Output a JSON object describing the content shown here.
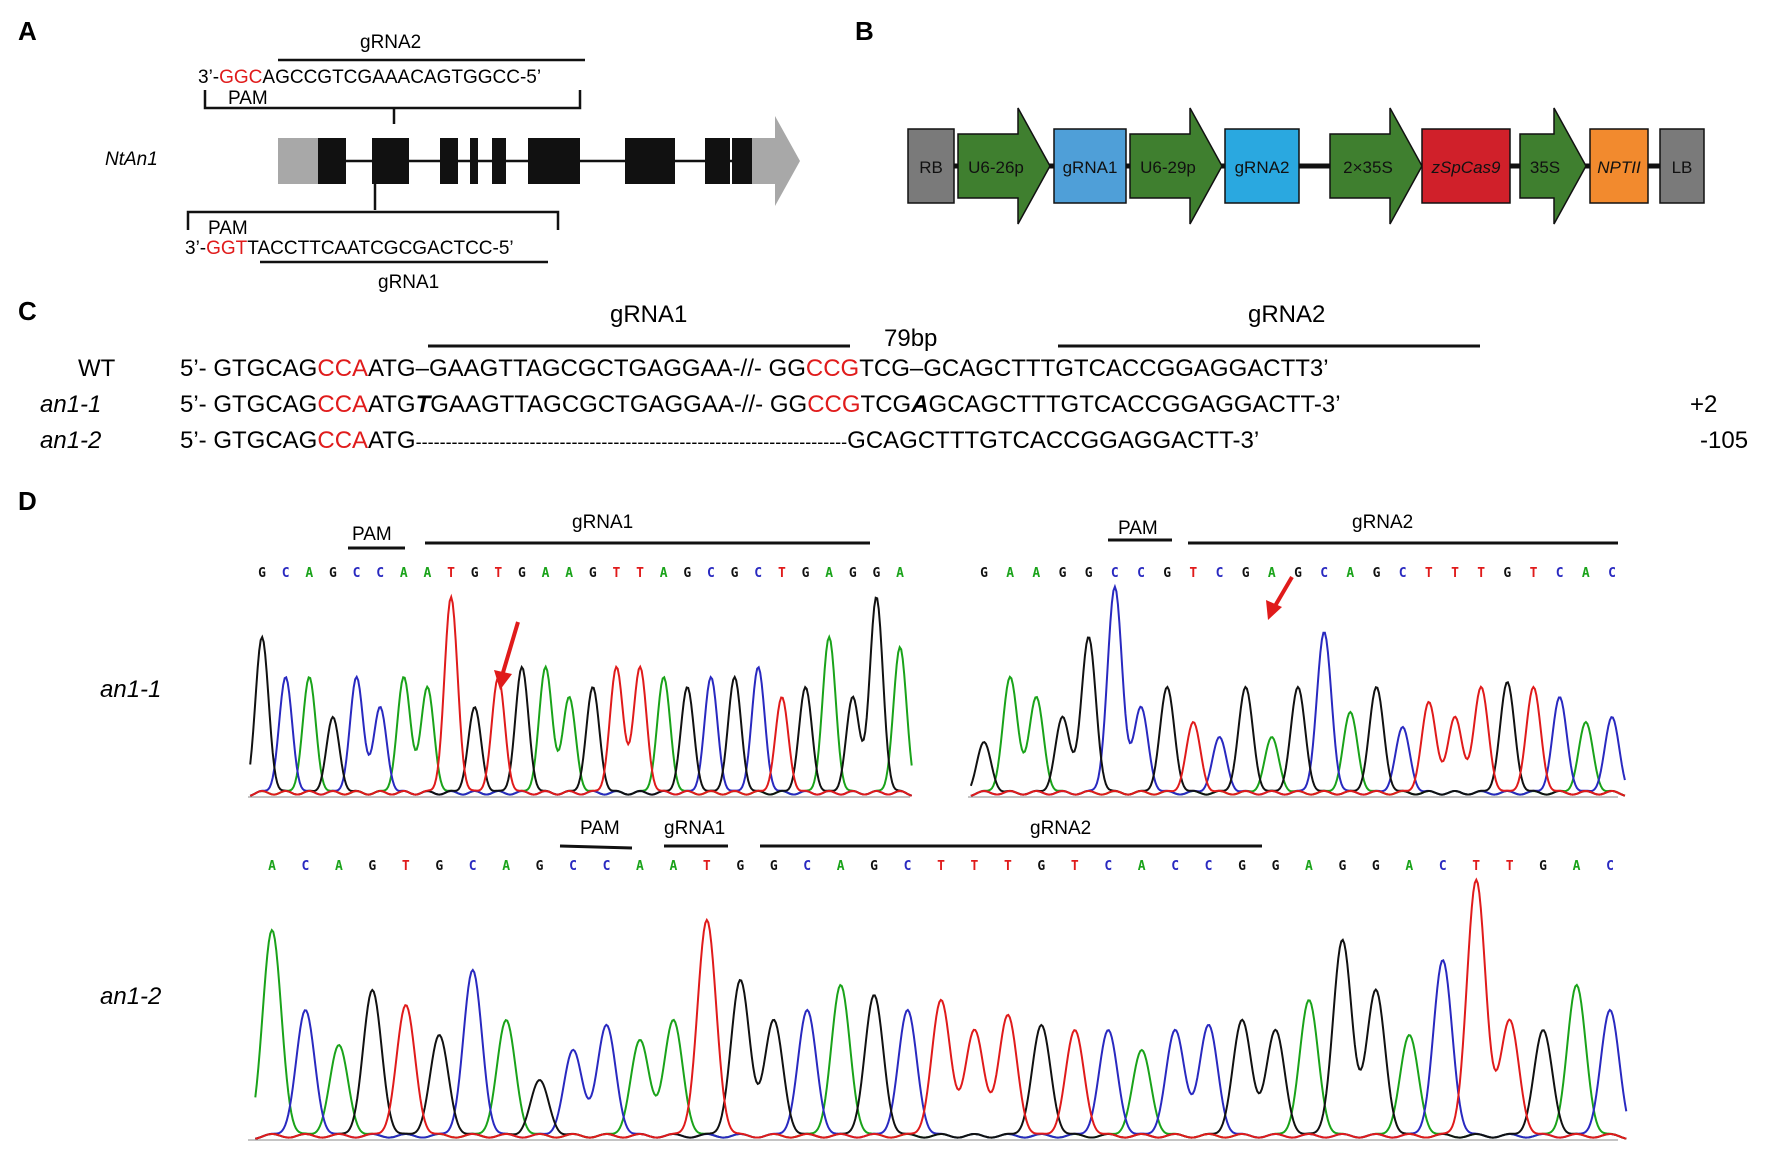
{
  "panels": {
    "a": "A",
    "b": "B",
    "c": "C",
    "d": "D"
  },
  "panelA": {
    "gene": "NtAn1",
    "grna2_label": "gRNA2",
    "grna2_prefix": "3’-",
    "grna2_pam": "GGC",
    "grna2_rest": "AGCCGTCGAAACAGTGGCC-5’",
    "pam_top": "PAM",
    "pam_bottom": "PAM",
    "grna1_prefix": "3’-",
    "grna1_pam": "GGT",
    "grna1_rest": "TACCTTCAATCGCGACTCC-5’",
    "grna1_label": "gRNA1"
  },
  "panelB": {
    "elements": [
      {
        "label": "RB",
        "color": "#7a7a7a",
        "shape": "box"
      },
      {
        "label": "U6-26p",
        "color": "#3f7f2f",
        "shape": "arrow"
      },
      {
        "label": "gRNA1",
        "color": "#4f9fd8",
        "shape": "box"
      },
      {
        "label": "U6-29p",
        "color": "#3f7f2f",
        "shape": "arrow"
      },
      {
        "label": "gRNA2",
        "color": "#2aa8e0",
        "shape": "box"
      },
      {
        "label": "2×35S",
        "color": "#3f7f2f",
        "shape": "arrow"
      },
      {
        "label": "zSpCas9",
        "color": "#d0202a",
        "shape": "box"
      },
      {
        "label": "35S",
        "color": "#3f7f2f",
        "shape": "arrow"
      },
      {
        "label": "NPTII",
        "color": "#f28a2e",
        "shape": "box"
      },
      {
        "label": "LB",
        "color": "#7a7a7a",
        "shape": "box"
      }
    ]
  },
  "panelC": {
    "grna1": "gRNA1",
    "grna2": "gRNA2",
    "gap": "79bp",
    "rows": [
      {
        "name": "WT",
        "prefix": "5’- ",
        "p1": "GTGCAG",
        "pam1": "CCA",
        "p2": "ATG",
        "ins1": "–",
        "p3": "GAAGTTAGCGCTGAGGAA-//- GG",
        "pam2": "CCG",
        "p4": "TCG",
        "ins2": "–",
        "p5": "GCAGCTTTGTCACCGGAGGACTT3’",
        "change": ""
      },
      {
        "name": "an1-1",
        "prefix": "5’- ",
        "p1": "GTGCAG",
        "pam1": "CCA",
        "p2": "ATG",
        "ins1": "T",
        "p3": "GAAGTTAGCGCTGAGGAA-//- GG",
        "pam2": "CCG",
        "p4": "TCG",
        "ins2": "A",
        "p5": "GCAGCTTTGTCACCGGAGGACTT-3’",
        "change": "+2"
      },
      {
        "name": "an1-2",
        "prefix": "5’- ",
        "p1": "GTGCAG",
        "pam1": "CCA",
        "p2": "ATG",
        "dashes": "------------------------------------------------------------------------",
        "p5": "GCAGCTTTGTCACCGGAGGACTT-3’",
        "change": "-105"
      }
    ]
  },
  "panelD": {
    "row1_label": "an1-1",
    "row2_label": "an1-2",
    "left": {
      "pam": "PAM",
      "grna": "gRNA1",
      "bases": "GCAGCCAATGTGAAGTTAGCGCTGAGGA"
    },
    "right": {
      "pam": "PAM",
      "grna": "gRNA2",
      "bases": "GAAGGCCGTCGAGCAGCTTTGTCAC"
    },
    "bottom": {
      "pam": "PAM",
      "grna1": "gRNA1",
      "grna2": "gRNA2",
      "bases": "ACAGTGCAGCCAATGGCAGCTTTGTCACCGGAGGACTTGAC"
    },
    "base_colors": {
      "A": "#1aa31a",
      "C": "#2929c0",
      "G": "#111111",
      "T": "#e01b1b"
    }
  }
}
